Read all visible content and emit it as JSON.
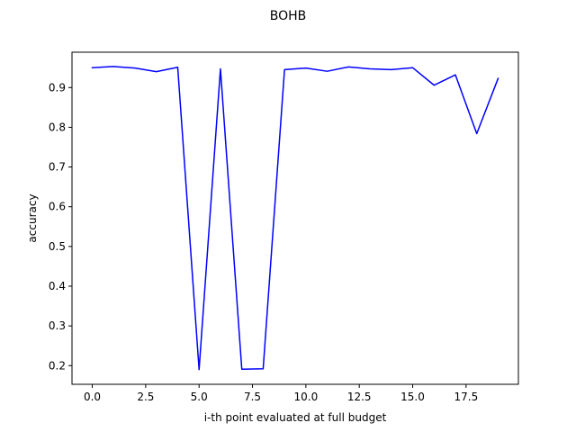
{
  "chart_data": {
    "type": "line",
    "title": "BOHB",
    "xlabel": "i-th point evaluated at full budget",
    "ylabel": "accuracy",
    "xlim": [
      -0.95,
      19.95
    ],
    "ylim": [
      0.153,
      0.989
    ],
    "xticks": [
      0.0,
      2.5,
      5.0,
      7.5,
      10.0,
      12.5,
      15.0,
      17.5
    ],
    "xtick_labels": [
      "0.0",
      "2.5",
      "5.0",
      "7.5",
      "10.0",
      "12.5",
      "15.0",
      "17.5"
    ],
    "yticks": [
      0.2,
      0.3,
      0.4,
      0.5,
      0.6,
      0.7,
      0.8,
      0.9
    ],
    "ytick_labels": [
      "0.2",
      "0.3",
      "0.4",
      "0.5",
      "0.6",
      "0.7",
      "0.8",
      "0.9"
    ],
    "grid": false,
    "series": [
      {
        "color": "#0000ff",
        "x": [
          0,
          1,
          2,
          3,
          4,
          5,
          6,
          7,
          8,
          9,
          10,
          11,
          12,
          13,
          14,
          15,
          16,
          17,
          18,
          19
        ],
        "y": [
          0.95,
          0.953,
          0.949,
          0.94,
          0.951,
          0.19,
          0.947,
          0.191,
          0.192,
          0.945,
          0.949,
          0.941,
          0.952,
          0.947,
          0.945,
          0.95,
          0.906,
          0.932,
          0.784,
          0.923
        ]
      }
    ]
  }
}
